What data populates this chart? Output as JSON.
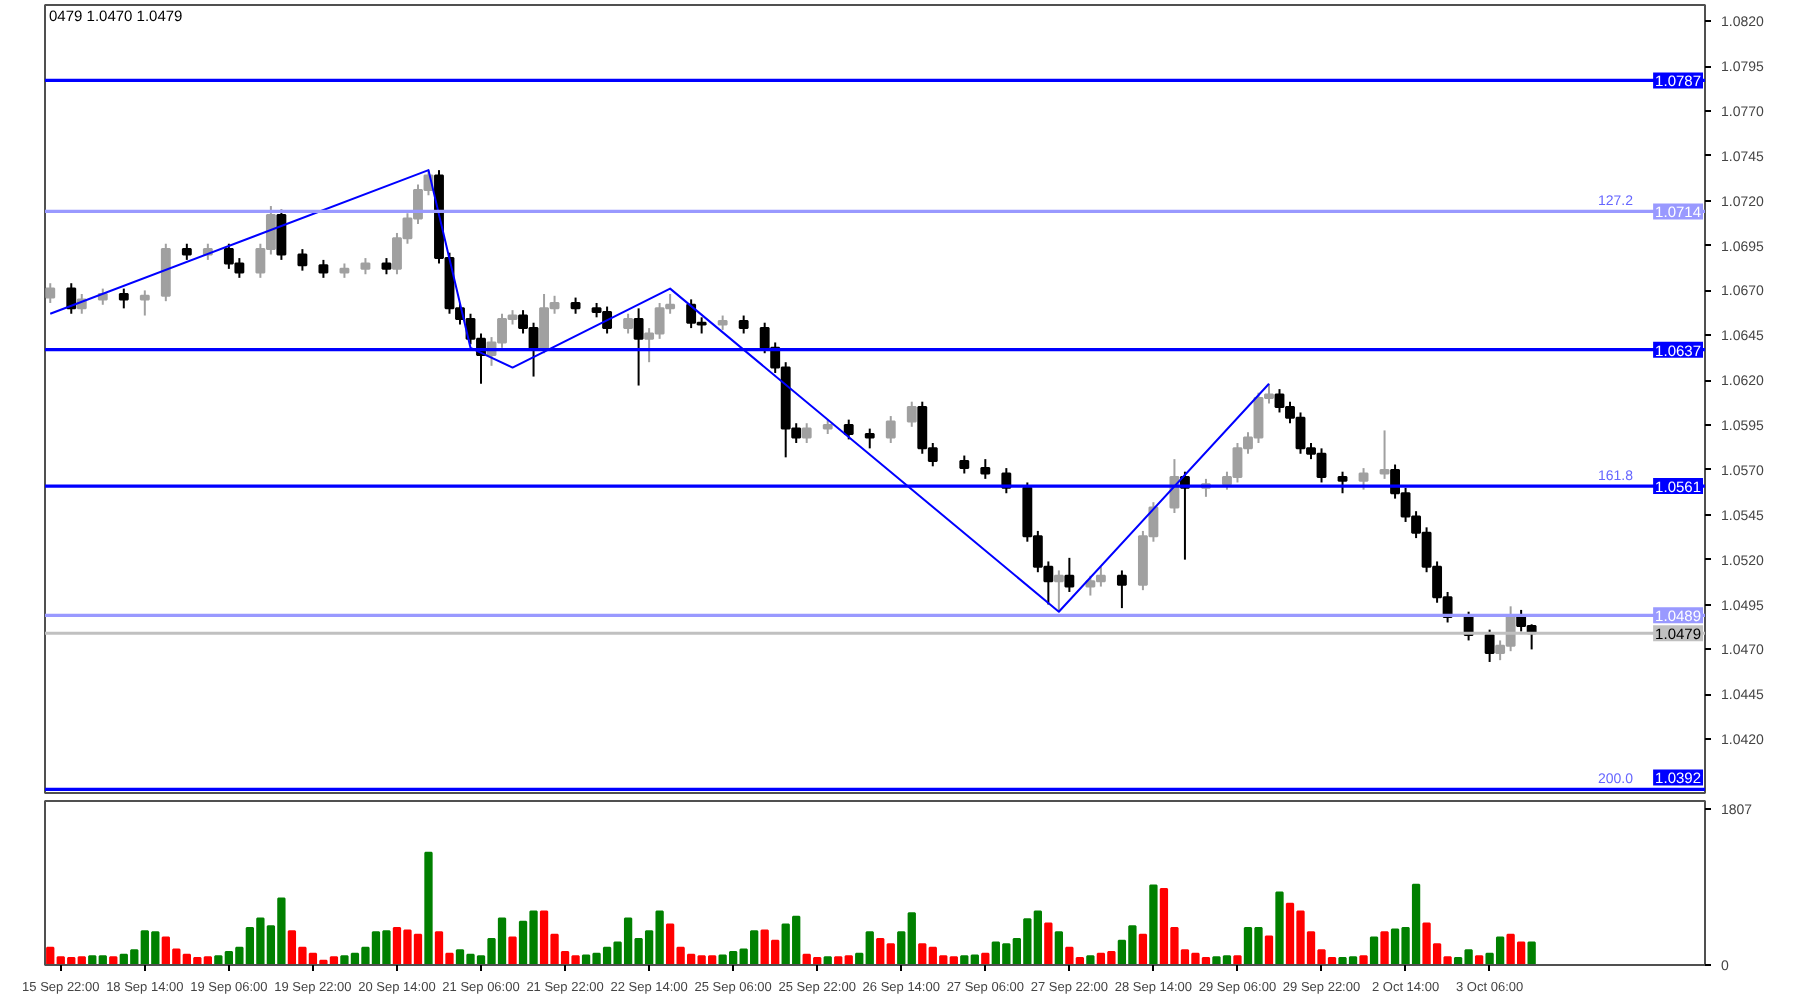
{
  "chart_data": [
    {
      "type": "candlestick",
      "categories": [
        null,
        null,
        null,
        null,
        null,
        null,
        null,
        null,
        null,
        null,
        null,
        null,
        null,
        null,
        null,
        null,
        null,
        null,
        null,
        null,
        null,
        null,
        null,
        null,
        null,
        null,
        null,
        null,
        null,
        null,
        null,
        null,
        null,
        null,
        null,
        null,
        null,
        null,
        null,
        null,
        null,
        null,
        null,
        null,
        null,
        null,
        null,
        null,
        null,
        null,
        null,
        null,
        null,
        null,
        null,
        null,
        null,
        null,
        null,
        null,
        null,
        null,
        null,
        null,
        null,
        null,
        null,
        null,
        null,
        null,
        null,
        null,
        null,
        null,
        null,
        null,
        null,
        null,
        null,
        null,
        null,
        null,
        null,
        null,
        null,
        null,
        null,
        null,
        null,
        null,
        null,
        null,
        null,
        null,
        null,
        null,
        null,
        null,
        null,
        null,
        null,
        null,
        null,
        null,
        null,
        null,
        null,
        null,
        null,
        null,
        null,
        null,
        null,
        null,
        null,
        null,
        null,
        null,
        null,
        null,
        null,
        null,
        null,
        null,
        null,
        null,
        null,
        null,
        null,
        null,
        null,
        null,
        null,
        null,
        null,
        null,
        null,
        null,
        null,
        null,
        null,
        null,
        null,
        null,
        null,
        null,
        null,
        null,
        null,
        null,
        null,
        null,
        null,
        null,
        null,
        null,
        null,
        null
      ],
      "ohlc": [
        [
          1.0666,
          1.0674,
          1.0663,
          1.0671
        ],
        null,
        [
          1.0671,
          1.0674,
          1.0657,
          1.066
        ],
        [
          1.066,
          1.0668,
          1.0657,
          1.0665
        ],
        null,
        [
          1.0665,
          1.0671,
          1.0662,
          1.0668
        ],
        null,
        [
          1.0668,
          1.0671,
          1.066,
          1.0665
        ],
        null,
        [
          1.0665,
          1.067,
          1.0656,
          1.0667
        ],
        null,
        [
          1.0667,
          1.0696,
          1.0664,
          1.0693
        ],
        null,
        [
          1.0693,
          1.0696,
          1.0687,
          1.069
        ],
        null,
        [
          1.069,
          1.0696,
          1.0687,
          1.0693
        ],
        null,
        [
          1.0693,
          1.0696,
          1.0682,
          1.0685
        ],
        [
          1.0685,
          1.0688,
          1.0677,
          1.068
        ],
        null,
        [
          1.068,
          1.0696,
          1.0677,
          1.0693
        ],
        [
          1.0693,
          1.0717,
          1.069,
          1.0712
        ],
        [
          1.0712,
          1.0715,
          1.0687,
          1.069
        ],
        null,
        [
          1.069,
          1.0693,
          1.0681,
          1.0684
        ],
        null,
        [
          1.0684,
          1.0687,
          1.0677,
          1.068
        ],
        null,
        [
          1.068,
          1.0685,
          1.0677,
          1.0682
        ],
        null,
        [
          1.0682,
          1.0688,
          1.0679,
          1.0685
        ],
        null,
        [
          1.0685,
          1.0688,
          1.0679,
          1.0682
        ],
        [
          1.0682,
          1.0702,
          1.0679,
          1.0699
        ],
        [
          1.0699,
          1.0713,
          1.0696,
          1.071
        ],
        [
          1.071,
          1.0729,
          1.0707,
          1.0726
        ],
        [
          1.0726,
          1.0737,
          1.0723,
          1.0734
        ],
        [
          1.0734,
          1.0737,
          1.0685,
          1.0688
        ],
        [
          1.0688,
          1.0691,
          1.0657,
          1.066
        ],
        [
          1.066,
          1.0663,
          1.0651,
          1.0654
        ],
        [
          1.0654,
          1.0657,
          1.064,
          1.0643
        ],
        [
          1.0643,
          1.0646,
          1.0618,
          1.0634
        ],
        [
          1.0634,
          1.0644,
          1.0628,
          1.0641
        ],
        [
          1.0641,
          1.0657,
          1.0638,
          1.0654
        ],
        [
          1.0654,
          1.0659,
          1.0651,
          1.0656
        ],
        [
          1.0656,
          1.0659,
          1.0646,
          1.0649
        ],
        [
          1.0649,
          1.0652,
          1.0622,
          1.0638
        ],
        [
          1.0638,
          1.0668,
          1.0635,
          1.066
        ],
        [
          1.066,
          1.0667,
          1.0657,
          1.0663
        ],
        null,
        [
          1.0663,
          1.0666,
          1.0657,
          1.066
        ],
        null,
        [
          1.066,
          1.0663,
          1.0655,
          1.0658
        ],
        [
          1.0658,
          1.0661,
          1.0646,
          1.0649
        ],
        null,
        [
          1.0649,
          1.0657,
          1.0646,
          1.0654
        ],
        [
          1.0654,
          1.066,
          1.0617,
          1.0643
        ],
        [
          1.0643,
          1.0649,
          1.063,
          1.0646
        ],
        [
          1.0646,
          1.0663,
          1.0643,
          1.066
        ],
        [
          1.066,
          1.0668,
          1.0657,
          1.0662
        ],
        null,
        [
          1.0662,
          1.0665,
          1.0649,
          1.0652
        ],
        [
          1.0652,
          1.0655,
          1.0646,
          1.0651
        ],
        null,
        [
          1.0651,
          1.0656,
          1.0648,
          1.0653
        ],
        null,
        [
          1.0653,
          1.0656,
          1.0646,
          1.0649
        ],
        null,
        [
          1.0649,
          1.0652,
          1.0635,
          1.0638
        ],
        [
          1.0638,
          1.0641,
          1.0624,
          1.0627
        ],
        [
          1.0627,
          1.063,
          1.0577,
          1.0593
        ],
        [
          1.0593,
          1.0596,
          1.0585,
          1.0588
        ],
        [
          1.0588,
          1.0596,
          1.0585,
          1.0593
        ],
        null,
        [
          1.0593,
          1.0598,
          1.059,
          1.0595
        ],
        null,
        [
          1.0595,
          1.0598,
          1.0587,
          1.059
        ],
        null,
        [
          1.059,
          1.0593,
          1.0582,
          1.0588
        ],
        null,
        [
          1.0588,
          1.06,
          1.0585,
          1.0597
        ],
        null,
        [
          1.0597,
          1.0608,
          1.0594,
          1.0605
        ],
        [
          1.0605,
          1.0608,
          1.0579,
          1.0582
        ],
        [
          1.0582,
          1.0585,
          1.0572,
          1.0575
        ],
        null,
        null,
        [
          1.0575,
          1.0578,
          1.0568,
          1.0571
        ],
        null,
        [
          1.0571,
          1.0576,
          1.0565,
          1.0568
        ],
        null,
        [
          1.0568,
          1.0571,
          1.0557,
          1.056
        ],
        null,
        [
          1.056,
          1.0563,
          1.053,
          1.0533
        ],
        [
          1.0533,
          1.0536,
          1.0513,
          1.0516
        ],
        [
          1.0516,
          1.0519,
          1.0495,
          1.0508
        ],
        [
          1.0508,
          1.0514,
          1.0491,
          1.0511
        ],
        [
          1.0511,
          1.0521,
          1.0502,
          1.0505
        ],
        null,
        [
          1.0505,
          1.0511,
          1.05,
          1.0508
        ],
        [
          1.0508,
          1.0516,
          1.0505,
          1.0511
        ],
        null,
        [
          1.0511,
          1.0514,
          1.0493,
          1.0506
        ],
        null,
        [
          1.0506,
          1.0536,
          1.0503,
          1.0533
        ],
        [
          1.0533,
          1.0552,
          1.053,
          1.0549
        ],
        null,
        [
          1.0549,
          1.0576,
          1.0546,
          1.0566
        ],
        [
          1.0566,
          1.0569,
          1.052,
          1.056
        ],
        null,
        [
          1.056,
          1.0565,
          1.0555,
          1.0562
        ],
        null,
        [
          1.0562,
          1.0569,
          1.0559,
          1.0566
        ],
        [
          1.0566,
          1.0585,
          1.0563,
          1.0582
        ],
        [
          1.0582,
          1.0591,
          1.0579,
          1.0588
        ],
        [
          1.0588,
          1.0613,
          1.0585,
          1.061
        ],
        [
          1.061,
          1.0618,
          1.0607,
          1.0612
        ],
        [
          1.0612,
          1.0615,
          1.0602,
          1.0605
        ],
        [
          1.0605,
          1.0608,
          1.0596,
          1.0599
        ],
        [
          1.0599,
          1.0602,
          1.0579,
          1.0582
        ],
        [
          1.0582,
          1.0585,
          1.0576,
          1.0579
        ],
        [
          1.0579,
          1.0582,
          1.0563,
          1.0566
        ],
        null,
        [
          1.0566,
          1.0569,
          1.0557,
          1.0564
        ],
        null,
        [
          1.0564,
          1.0571,
          1.0559,
          1.0568
        ],
        null,
        [
          1.0568,
          1.0592,
          1.0565,
          1.057
        ],
        [
          1.057,
          1.0573,
          1.0554,
          1.0557
        ],
        [
          1.0557,
          1.056,
          1.0541,
          1.0544
        ],
        [
          1.0544,
          1.0547,
          1.0532,
          1.0535
        ],
        [
          1.0535,
          1.0538,
          1.0513,
          1.0516
        ],
        [
          1.0516,
          1.0519,
          1.0496,
          1.0499
        ],
        [
          1.0499,
          1.0502,
          1.0485,
          1.0488
        ],
        null,
        [
          1.0488,
          1.0491,
          1.0475,
          1.0478
        ],
        null,
        [
          1.0478,
          1.0481,
          1.0463,
          1.0468
        ],
        [
          1.0468,
          1.0475,
          1.0464,
          1.0472
        ],
        [
          1.0472,
          1.0494,
          1.0469,
          1.0488
        ],
        [
          1.0488,
          1.0492,
          1.048,
          1.0483
        ],
        [
          1.0483,
          1.0484,
          1.047,
          1.0479
        ],
        null,
        null,
        null,
        null,
        null,
        null,
        null,
        null,
        null,
        null,
        null,
        null,
        null,
        null,
        null,
        null
      ],
      "colors": [
        "#a0a0a0",
        null,
        "#000000",
        "#a0a0a0",
        null,
        "#a0a0a0",
        null,
        "#000000",
        null,
        "#a0a0a0",
        null,
        "#a0a0a0",
        null,
        "#000000",
        null,
        "#a0a0a0",
        null,
        "#000000",
        "#000000",
        null,
        "#a0a0a0",
        "#a0a0a0",
        "#000000",
        null,
        "#000000",
        null,
        "#000000",
        null,
        "#a0a0a0",
        null,
        "#a0a0a0",
        null,
        "#000000",
        "#a0a0a0",
        "#a0a0a0",
        "#a0a0a0",
        "#a0a0a0",
        "#000000",
        "#000000",
        "#000000",
        "#000000",
        "#000000",
        "#a0a0a0",
        "#a0a0a0",
        "#a0a0a0",
        "#000000",
        "#000000",
        "#a0a0a0",
        "#a0a0a0",
        null,
        "#000000",
        null,
        "#000000",
        "#000000",
        null,
        "#a0a0a0",
        "#000000",
        "#a0a0a0",
        "#a0a0a0",
        "#a0a0a0",
        null,
        "#000000",
        "#000000",
        null,
        "#a0a0a0",
        null,
        "#000000",
        null,
        "#000000",
        "#000000",
        "#000000",
        "#000000",
        "#a0a0a0",
        null,
        "#a0a0a0",
        null,
        "#000000",
        null,
        "#000000",
        null,
        "#a0a0a0",
        null,
        "#a0a0a0",
        "#000000",
        "#000000",
        null,
        null,
        "#000000",
        null,
        "#000000",
        null,
        "#000000",
        null,
        "#000000",
        "#000000",
        "#000000",
        "#a0a0a0",
        "#000000",
        null,
        "#a0a0a0",
        "#a0a0a0",
        null,
        "#000000",
        null,
        "#a0a0a0",
        "#a0a0a0",
        null,
        "#a0a0a0",
        "#000000",
        null,
        "#a0a0a0",
        null,
        "#a0a0a0",
        "#a0a0a0",
        "#a0a0a0",
        "#a0a0a0",
        "#a0a0a0",
        "#000000",
        "#000000",
        "#000000",
        "#000000",
        "#000000",
        null,
        "#000000",
        null,
        "#a0a0a0",
        null,
        "#a0a0a0",
        "#000000",
        "#000000",
        "#000000",
        "#000000",
        "#000000",
        "#000000",
        null,
        "#000000",
        null,
        "#000000",
        "#a0a0a0",
        "#a0a0a0",
        "#000000",
        "#000000",
        null,
        null,
        null,
        null,
        null,
        null,
        null,
        null,
        null,
        null,
        null,
        null,
        null,
        null,
        null,
        null
      ],
      "series": [
        {
          "type": "line",
          "color": "#0000ff",
          "values": [
            1.0657,
            null,
            null,
            null,
            null,
            null,
            null,
            null,
            null,
            null,
            null,
            null,
            null,
            null,
            null,
            null,
            null,
            null,
            null,
            null,
            null,
            null,
            null,
            null,
            null,
            null,
            null,
            null,
            null,
            null,
            null,
            null,
            null,
            null,
            null,
            null,
            1.0737,
            null,
            null,
            null,
            1.0638,
            null,
            null,
            null,
            1.0627,
            null,
            null,
            null,
            null,
            null,
            null,
            null,
            null,
            null,
            null,
            null,
            null,
            null,
            null,
            1.0671,
            null,
            null,
            null,
            null,
            null,
            null,
            null,
            null,
            null,
            null,
            null,
            null,
            null,
            null,
            null,
            null,
            null,
            null,
            null,
            null,
            null,
            null,
            null,
            null,
            null,
            null,
            null,
            null,
            null,
            null,
            null,
            null,
            null,
            null,
            null,
            null,
            1.0491,
            null,
            null,
            null,
            null,
            null,
            null,
            null,
            null,
            null,
            null,
            null,
            null,
            null,
            null,
            null,
            null,
            null,
            null,
            null,
            1.0618,
            null,
            null,
            null,
            null,
            null,
            null,
            null,
            null,
            null,
            null,
            null,
            null,
            null,
            null,
            null,
            null,
            null,
            null,
            null,
            null,
            null,
            null,
            null,
            null,
            null,
            null,
            null,
            null,
            null,
            null,
            null,
            null,
            null,
            null,
            null,
            null,
            null,
            null,
            null,
            null,
            null
          ]
        }
      ],
      "ylim": [
        1.039,
        1.0829
      ],
      "yticks": [
        {
          "value": 1.042,
          "label": "1.0420"
        },
        {
          "value": 1.0445,
          "label": "1.0445"
        },
        {
          "value": 1.047,
          "label": "1.0470"
        },
        {
          "value": 1.0495,
          "label": "1.0495"
        },
        {
          "value": 1.052,
          "label": "1.0520"
        },
        {
          "value": 1.0545,
          "label": "1.0545"
        },
        {
          "value": 1.057,
          "label": "1.0570"
        },
        {
          "value": 1.0595,
          "label": "1.0595"
        },
        {
          "value": 1.062,
          "label": "1.0620"
        },
        {
          "value": 1.0645,
          "label": "1.0645"
        },
        {
          "value": 1.067,
          "label": "1.0670"
        },
        {
          "value": 1.0695,
          "label": "1.0695"
        },
        {
          "value": 1.072,
          "label": "1.0720"
        },
        {
          "value": 1.0745,
          "label": "1.0745"
        },
        {
          "value": 1.077,
          "label": "1.0770"
        },
        {
          "value": 1.0795,
          "label": "1.0795"
        },
        {
          "value": 1.082,
          "label": "1.0820"
        }
      ],
      "tick_labels": "y",
      "ref_lines": [
        {
          "axis": "y",
          "value": 1.0787,
          "label": "1.0787",
          "color": "#0000ff"
        },
        {
          "axis": "y",
          "value": 1.0714,
          "label": "1.0714",
          "color": "#9999ff"
        },
        {
          "axis": "y",
          "value": 1.0637,
          "label": "1.0637",
          "color": "#0000ff"
        },
        {
          "axis": "y",
          "value": 1.0561,
          "label": "1.0561",
          "color": "#0000ff"
        },
        {
          "axis": "y",
          "value": 1.0489,
          "label": "1.0489",
          "color": "#9999ff"
        },
        {
          "axis": "y",
          "value": 1.0479,
          "label": "1.0479",
          "color": "#c0c0c0"
        },
        {
          "axis": "y",
          "value": 1.0392,
          "label": "1.0392",
          "color": "#0000ff"
        }
      ],
      "annotations": [
        "0479 1.0470 1.0479",
        {
          "text": "127.2",
          "y": 1.0714
        },
        {
          "text": "161.8",
          "y": 1.0561
        },
        {
          "text": "200.0",
          "y": 1.0392
        }
      ]
    },
    {
      "type": "bar",
      "categories": [
        null,
        "15 Sep 22:00",
        null,
        null,
        null,
        null,
        null,
        null,
        null,
        "18 Sep 14:00",
        null,
        null,
        null,
        null,
        null,
        null,
        null,
        "19 Sep 06:00",
        null,
        null,
        null,
        null,
        null,
        null,
        null,
        "19 Sep 22:00",
        null,
        null,
        null,
        null,
        null,
        null,
        null,
        "20 Sep 14:00",
        null,
        null,
        null,
        null,
        null,
        null,
        null,
        "21 Sep 06:00",
        null,
        null,
        null,
        null,
        null,
        null,
        null,
        "21 Sep 22:00",
        null,
        null,
        null,
        null,
        null,
        null,
        null,
        "22 Sep 14:00",
        null,
        null,
        null,
        null,
        null,
        null,
        null,
        "25 Sep 06:00",
        null,
        null,
        null,
        null,
        null,
        null,
        null,
        "25 Sep 22:00",
        null,
        null,
        null,
        null,
        null,
        null,
        null,
        "26 Sep 14:00",
        null,
        null,
        null,
        null,
        null,
        null,
        null,
        "27 Sep 06:00",
        null,
        null,
        null,
        null,
        null,
        null,
        null,
        "27 Sep 22:00",
        null,
        null,
        null,
        null,
        null,
        null,
        null,
        "28 Sep 14:00",
        null,
        null,
        null,
        null,
        null,
        null,
        null,
        "29 Sep 06:00",
        null,
        null,
        null,
        null,
        null,
        null,
        null,
        "29 Sep 22:00",
        null,
        null,
        null,
        null,
        null,
        null,
        null,
        "2 Oct 14:00",
        null,
        null,
        null,
        null,
        null,
        null,
        null,
        "3 Oct 06:00",
        null,
        null,
        null,
        null,
        null,
        null,
        null,
        null,
        null,
        null,
        null,
        null,
        null,
        null,
        null,
        null,
        null,
        null,
        null,
        null
      ],
      "values": [
        200,
        90,
        80,
        90,
        100,
        100,
        90,
        120,
        170,
        390,
        380,
        320,
        180,
        120,
        80,
        90,
        100,
        150,
        200,
        430,
        540,
        450,
        770,
        390,
        200,
        130,
        50,
        90,
        100,
        130,
        200,
        380,
        390,
        430,
        400,
        350,
        1300,
        380,
        130,
        170,
        120,
        100,
        300,
        540,
        320,
        500,
        620,
        620,
        350,
        150,
        100,
        110,
        130,
        200,
        260,
        540,
        300,
        390,
        620,
        470,
        200,
        120,
        100,
        100,
        110,
        150,
        180,
        390,
        400,
        280,
        470,
        560,
        120,
        80,
        90,
        90,
        100,
        130,
        380,
        300,
        240,
        380,
        600,
        240,
        200,
        100,
        90,
        100,
        110,
        130,
        260,
        240,
        300,
        530,
        620,
        480,
        380,
        200,
        80,
        100,
        130,
        150,
        280,
        450,
        350,
        920,
        880,
        430,
        170,
        130,
        80,
        90,
        100,
        100,
        430,
        430,
        330,
        840,
        710,
        620,
        380,
        170,
        80,
        80,
        90,
        100,
        320,
        380,
        410,
        430,
        930,
        480,
        240,
        90,
        80,
        170,
        100,
        130,
        320,
        350,
        260,
        260,
        null,
        null,
        null,
        null,
        null,
        null,
        null,
        null,
        null,
        null,
        null,
        null,
        null,
        null,
        null,
        null
      ],
      "colors": [
        "#ff0000",
        "#ff0000",
        "#ff0000",
        "#ff0000",
        "#008000",
        "#008000",
        "#ff0000",
        "#008000",
        "#008000",
        "#008000",
        "#008000",
        "#ff0000",
        "#ff0000",
        "#ff0000",
        "#ff0000",
        "#ff0000",
        "#008000",
        "#008000",
        "#008000",
        "#008000",
        "#008000",
        "#008000",
        "#008000",
        "#ff0000",
        "#ff0000",
        "#ff0000",
        "#ff0000",
        "#ff0000",
        "#008000",
        "#008000",
        "#008000",
        "#008000",
        "#008000",
        "#ff0000",
        "#ff0000",
        "#ff0000",
        "#008000",
        "#ff0000",
        "#ff0000",
        "#008000",
        "#008000",
        "#008000",
        "#008000",
        "#008000",
        "#ff0000",
        "#008000",
        "#008000",
        "#ff0000",
        "#ff0000",
        "#ff0000",
        "#ff0000",
        "#008000",
        "#008000",
        "#008000",
        "#008000",
        "#008000",
        "#008000",
        "#008000",
        "#008000",
        "#ff0000",
        "#ff0000",
        "#ff0000",
        "#ff0000",
        "#ff0000",
        "#008000",
        "#008000",
        "#008000",
        "#008000",
        "#ff0000",
        "#ff0000",
        "#008000",
        "#008000",
        "#ff0000",
        "#ff0000",
        "#008000",
        "#ff0000",
        "#ff0000",
        "#008000",
        "#008000",
        "#ff0000",
        "#ff0000",
        "#008000",
        "#008000",
        "#ff0000",
        "#ff0000",
        "#ff0000",
        "#ff0000",
        "#008000",
        "#008000",
        "#ff0000",
        "#008000",
        "#008000",
        "#008000",
        "#008000",
        "#008000",
        "#ff0000",
        "#008000",
        "#ff0000",
        "#ff0000",
        "#008000",
        "#ff0000",
        "#ff0000",
        "#008000",
        "#008000",
        "#ff0000",
        "#008000",
        "#ff0000",
        "#ff0000",
        "#ff0000",
        "#ff0000",
        "#ff0000",
        "#008000",
        "#008000",
        "#ff0000",
        "#008000",
        "#008000",
        "#ff0000",
        "#008000",
        "#ff0000",
        "#ff0000",
        "#ff0000",
        "#ff0000",
        "#ff0000",
        "#008000",
        "#008000",
        "#ff0000",
        "#008000",
        "#ff0000",
        "#008000",
        "#008000",
        "#008000",
        "#ff0000",
        "#ff0000",
        "#ff0000",
        "#008000",
        "#008000",
        "#ff0000",
        "#008000",
        "#008000",
        "#ff0000",
        "#ff0000",
        "#008000",
        null,
        null,
        null,
        null,
        null,
        null,
        null,
        null,
        null,
        null,
        null,
        null,
        null,
        null,
        null,
        null
      ],
      "ylim": [
        0,
        1900
      ],
      "yticks": [
        0,
        1807
      ]
    }
  ]
}
